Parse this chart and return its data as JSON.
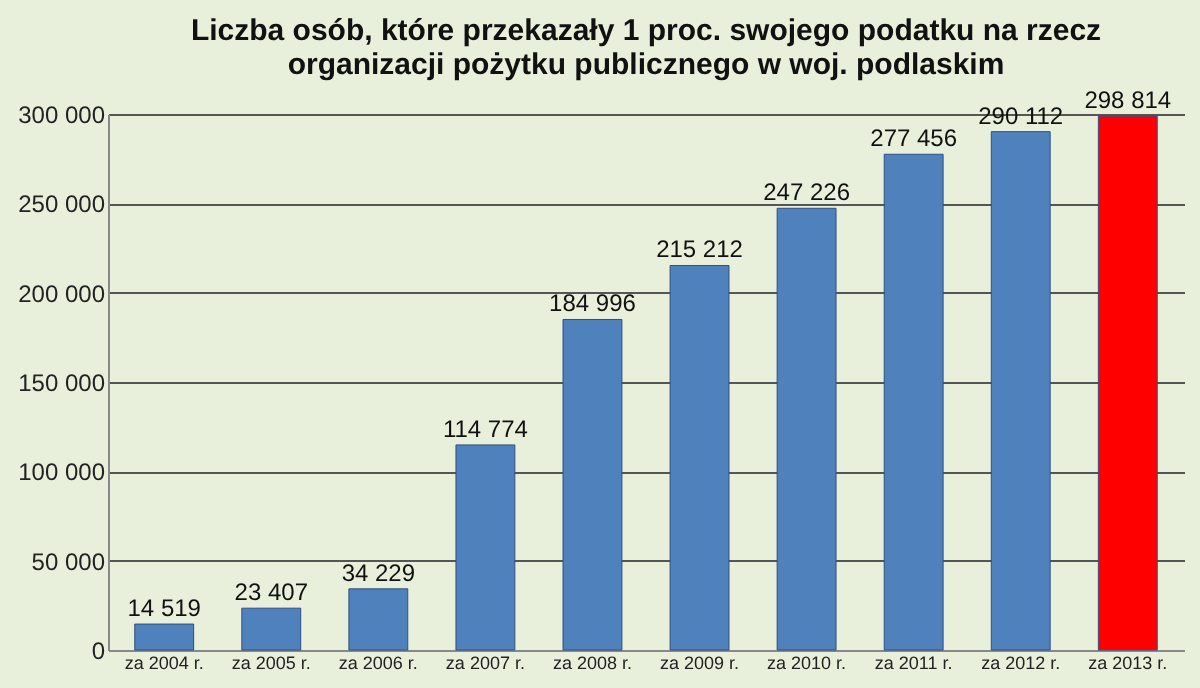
{
  "chart_data": {
    "type": "bar",
    "title": [
      "Liczba osób, które przekazały 1 proc. swojego podatku na rzecz",
      "organizacji pożytku publicznego w woj. podlaskim"
    ],
    "categories": [
      "za 2004 r.",
      "za 2005 r.",
      "za 2006 r.",
      "za 2007 r.",
      "za 2008 r.",
      "za 2009 r.",
      "za 2010 r.",
      "za 2011 r.",
      "za 2012 r.",
      "za 2013 r."
    ],
    "values": [
      14519,
      23407,
      34229,
      114774,
      184996,
      215212,
      247226,
      277456,
      290112,
      298814
    ],
    "colors": [
      "#4f81bd",
      "#4f81bd",
      "#4f81bd",
      "#4f81bd",
      "#4f81bd",
      "#4f81bd",
      "#4f81bd",
      "#4f81bd",
      "#4f81bd",
      "#ff0000"
    ],
    "value_labels": [
      "14 519",
      "23 407",
      "34 229",
      "114 774",
      "184 996",
      "215 212",
      "247 226",
      "277 456",
      "290 112",
      "298 814"
    ],
    "ylim": [
      0,
      300000
    ],
    "yticks": [
      {
        "value": 0,
        "label": "0"
      },
      {
        "value": 50000,
        "label": "50 000"
      },
      {
        "value": 100000,
        "label": "100 000"
      },
      {
        "value": 150000,
        "label": "150 000"
      },
      {
        "value": 200000,
        "label": "200 000"
      },
      {
        "value": 250000,
        "label": "250 000"
      },
      {
        "value": 300000,
        "label": "300 000"
      }
    ],
    "grid": "y"
  }
}
